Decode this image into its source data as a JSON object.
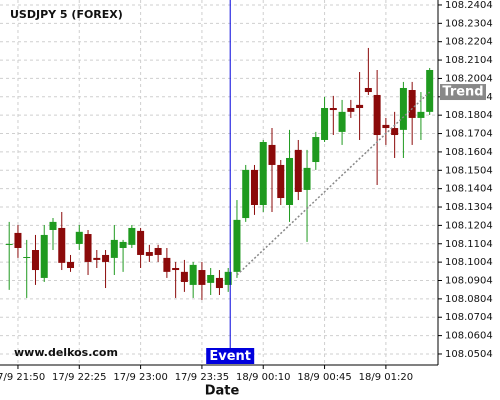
{
  "chart_data": {
    "type": "candlestick",
    "title": "USDJPY 5 (FOREX)",
    "watermark": "www.delkos.com",
    "x_label": "Date",
    "categories": [
      null,
      "17/9 21:50",
      null,
      null,
      null,
      null,
      null,
      null,
      "17/9 22:25",
      null,
      null,
      null,
      null,
      null,
      null,
      "17/9 23:00",
      null,
      null,
      null,
      null,
      null,
      null,
      "17/9 23:35",
      null,
      null,
      null,
      null,
      null,
      null,
      "18/9 00:10",
      null,
      null,
      null,
      null,
      null,
      null,
      "18/9 00:45",
      null,
      null,
      null,
      null,
      null,
      null,
      "18/9 01:20",
      null,
      null,
      null,
      null,
      null
    ],
    "open": [
      108.1098,
      108.1163,
      108.1027,
      108.107,
      108.0918,
      108.1179,
      108.119,
      108.1005,
      108.1103,
      108.1157,
      108.1027,
      108.1043,
      108.1027,
      108.1081,
      108.1098,
      108.1174,
      108.1059,
      108.1081,
      108.1027,
      108.0972,
      108.0951,
      108.088,
      108.0961,
      108.0891,
      108.0918,
      108.088,
      108.0951,
      108.1244,
      108.1506,
      108.1315,
      108.1642,
      108.1533,
      108.1315,
      108.1615,
      108.1397,
      108.1549,
      108.1669,
      108.1843,
      108.1713,
      108.1843,
      108.186,
      108.1952,
      108.1914,
      108.1751,
      108.1734,
      108.1724,
      108.1941,
      108.1789,
      108.1822
    ],
    "high": [
      108.1223,
      108.1206,
      108.1125,
      108.1152,
      108.1206,
      108.1244,
      108.1277,
      108.1043,
      108.1206,
      108.1179,
      108.107,
      108.107,
      108.1206,
      108.1125,
      108.1206,
      108.119,
      108.1098,
      108.1098,
      108.1081,
      108.1005,
      108.1016,
      108.1005,
      108.1005,
      108.0972,
      108.0961,
      108.0972,
      108.1342,
      108.1533,
      108.1533,
      108.1669,
      108.1734,
      108.156,
      108.1724,
      108.1669,
      108.1615,
      108.1713,
      108.1903,
      108.1909,
      108.1887,
      108.1887,
      108.2039,
      108.217,
      108.205,
      108.1789,
      108.1822,
      108.1985,
      108.1985,
      108.193,
      108.2061
    ],
    "low": [
      108.0853,
      108.1027,
      108.0809,
      108.088,
      108.0896,
      108.107,
      108.0961,
      108.0951,
      108.107,
      108.0934,
      108.0972,
      108.0863,
      108.0934,
      108.0951,
      108.1081,
      108.0972,
      108.1005,
      108.1005,
      108.0918,
      108.0809,
      108.0842,
      108.0809,
      108.0798,
      108.0825,
      108.0825,
      108.0842,
      108.0918,
      108.1223,
      108.1261,
      108.1277,
      108.1277,
      108.1315,
      108.1223,
      108.1342,
      108.1114,
      108.1506,
      108.1658,
      108.1696,
      108.1642,
      108.1789,
      108.1669,
      108.1914,
      108.1424,
      108.1642,
      108.1571,
      108.1571,
      108.1642,
      108.1669,
      108.1805
    ],
    "close": [
      108.1103,
      108.1081,
      108.1032,
      108.0961,
      108.1152,
      108.1223,
      108.1,
      108.0972,
      108.1169,
      108.1005,
      108.1016,
      108.1005,
      108.1125,
      108.1114,
      108.119,
      108.1043,
      108.1038,
      108.1043,
      108.0951,
      108.0961,
      108.0896,
      108.0989,
      108.088,
      108.0934,
      108.0863,
      108.0951,
      108.1234,
      108.1506,
      108.1315,
      108.1658,
      108.1533,
      108.1353,
      108.1571,
      108.1386,
      108.1517,
      108.1685,
      108.1843,
      108.1832,
      108.1822,
      108.1822,
      108.1843,
      108.193,
      108.1696,
      108.1734,
      108.1696,
      108.1952,
      108.1789,
      108.1822,
      108.205
    ],
    "up_color": "#1f9a1f",
    "down_color": "#8b0a0a",
    "ylim": [
      108.0444,
      108.2431
    ],
    "yticks": [
      108.0504,
      108.0604,
      108.0704,
      108.0804,
      108.0904,
      108.1004,
      108.1104,
      108.1204,
      108.1304,
      108.1404,
      108.1504,
      108.1604,
      108.1704,
      108.1804,
      108.1904,
      108.2004,
      108.2104,
      108.2204,
      108.2304,
      108.2404
    ],
    "grid": true,
    "event": {
      "label": "Event",
      "index": 25,
      "color": "#0000dd"
    },
    "trend": {
      "label": "Trend",
      "start_index": 26,
      "start_value": 108.0934,
      "end_index": 48,
      "end_value": 108.193,
      "color": "#888888"
    }
  }
}
